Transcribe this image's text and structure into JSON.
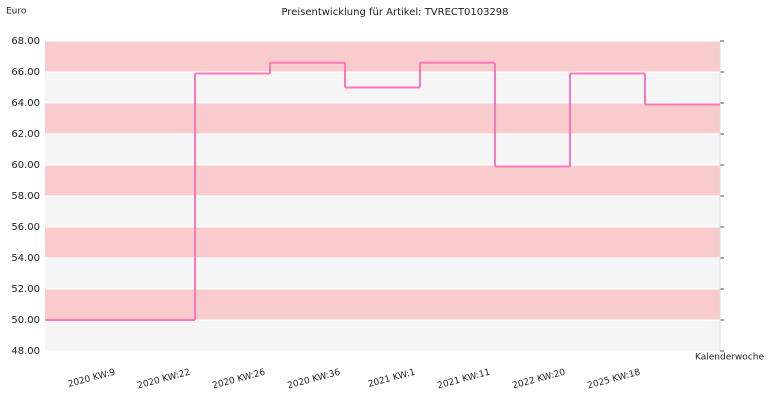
{
  "chart_data": {
    "type": "step-line",
    "title": "Preisentwicklung für Artikel: TVRECT0103298",
    "y_label": "Euro",
    "x_label": "Kalenderwoche",
    "categories": [
      "2020 KW:9",
      "2020 KW:22",
      "2020 KW:26",
      "2020 KW:36",
      "2021 KW:1",
      "2021 KW:11",
      "2022 KW:20",
      "2025 KW:18"
    ],
    "values": [
      50,
      65.9,
      66.6,
      65,
      66.6,
      59.9,
      65.9,
      63.9
    ],
    "color": "#ff77bb",
    "band_colors": [
      "#f5f5f5",
      "#f8cccc"
    ],
    "ylim": [
      48,
      68
    ],
    "yticks": [
      {
        "value": 48,
        "label": "48.00"
      },
      {
        "value": 50,
        "label": "50.00"
      },
      {
        "value": 52,
        "label": "52.00"
      },
      {
        "value": 54,
        "label": "54.00"
      },
      {
        "value": 56,
        "label": "56.00"
      },
      {
        "value": 58,
        "label": "58.00"
      },
      {
        "value": 60,
        "label": "60.00"
      },
      {
        "value": 62,
        "label": "62.00"
      },
      {
        "value": 64,
        "label": "64.00"
      },
      {
        "value": 66,
        "label": "66.00"
      },
      {
        "value": 68,
        "label": "68.00"
      }
    ],
    "grid": true
  }
}
